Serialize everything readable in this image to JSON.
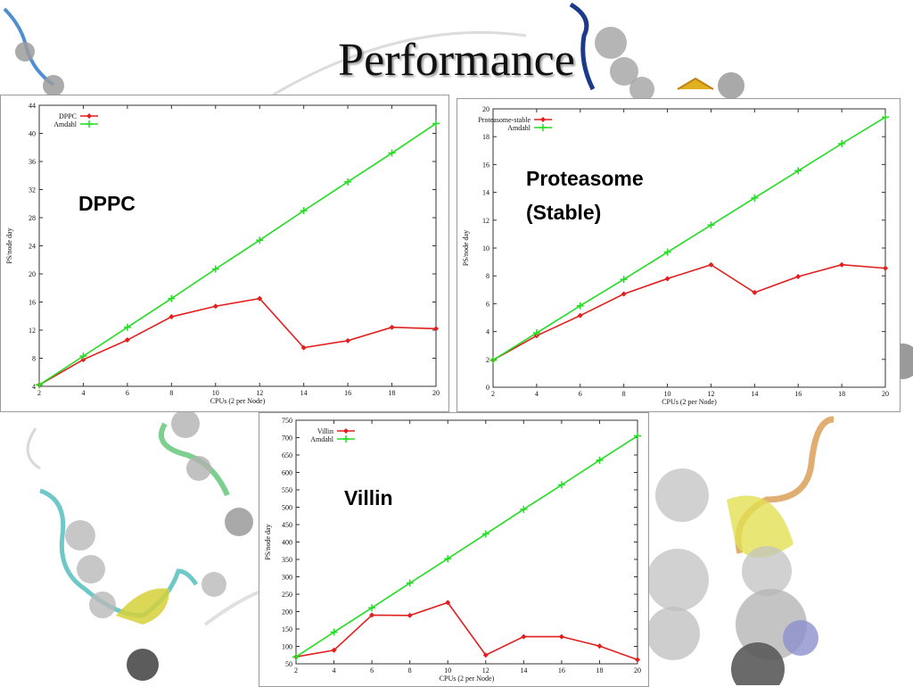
{
  "slide": {
    "title": "Performance"
  },
  "colors": {
    "series1": "#e21f1f",
    "series2": "#22dd22",
    "frame": "#333333"
  },
  "chart_data": [
    {
      "type": "line",
      "overlay_label": "DPPC",
      "xlabel": "CPUs (2 per Node)",
      "ylabel": "PS/node day",
      "x": [
        2,
        4,
        6,
        8,
        10,
        12,
        14,
        16,
        18,
        20
      ],
      "xticks": [
        2,
        4,
        6,
        8,
        10,
        12,
        14,
        16,
        18,
        20
      ],
      "yticks": [
        4,
        8,
        12,
        16,
        20,
        24,
        28,
        32,
        36,
        40,
        44
      ],
      "ylim": [
        4,
        44
      ],
      "xlim": [
        2,
        20
      ],
      "legend": "top-left",
      "series": [
        {
          "name": "DPPC",
          "values": [
            4.2,
            7.8,
            10.6,
            13.9,
            15.4,
            16.5,
            9.5,
            10.5,
            12.4,
            12.2
          ]
        },
        {
          "name": "Amdahl",
          "values": [
            4.2,
            8.3,
            12.4,
            16.5,
            20.7,
            24.8,
            29.0,
            33.1,
            37.2,
            41.4
          ]
        }
      ]
    },
    {
      "type": "line",
      "overlay_label": "Proteasome (Stable)",
      "xlabel": "CPUs (2 per Node)",
      "ylabel": "PS/node day",
      "x": [
        2,
        4,
        6,
        8,
        10,
        12,
        14,
        16,
        18,
        20
      ],
      "xticks": [
        2,
        4,
        6,
        8,
        10,
        12,
        14,
        16,
        18,
        20
      ],
      "yticks": [
        0,
        2,
        4,
        6,
        8,
        10,
        12,
        14,
        16,
        18,
        20
      ],
      "ylim": [
        0,
        20
      ],
      "xlim": [
        2,
        20
      ],
      "legend": "top-left",
      "series": [
        {
          "name": "Proteasome-stable",
          "values": [
            1.95,
            3.7,
            5.15,
            6.7,
            7.8,
            8.8,
            6.8,
            7.95,
            8.8,
            8.55
          ]
        },
        {
          "name": "Amdahl",
          "values": [
            1.95,
            3.9,
            5.85,
            7.75,
            9.7,
            11.65,
            13.6,
            15.55,
            17.5,
            19.4
          ]
        }
      ]
    },
    {
      "type": "line",
      "overlay_label": "Villin",
      "xlabel": "CPUs (2 per Node)",
      "ylabel": "PS/node day",
      "x": [
        2,
        4,
        6,
        8,
        10,
        12,
        14,
        16,
        18,
        20
      ],
      "xticks": [
        2,
        4,
        6,
        8,
        10,
        12,
        14,
        16,
        18,
        20
      ],
      "yticks": [
        50,
        100,
        150,
        200,
        250,
        300,
        350,
        400,
        450,
        500,
        550,
        600,
        650,
        700,
        750
      ],
      "ylim": [
        50,
        750
      ],
      "xlim": [
        2,
        20
      ],
      "legend": "top-left",
      "series": [
        {
          "name": "Villin",
          "values": [
            70,
            89,
            190,
            189,
            226,
            75,
            128,
            128,
            101,
            62
          ]
        },
        {
          "name": "Amdahl",
          "values": [
            70,
            141,
            211,
            282,
            352,
            423,
            494,
            564,
            635,
            705
          ]
        }
      ]
    }
  ]
}
